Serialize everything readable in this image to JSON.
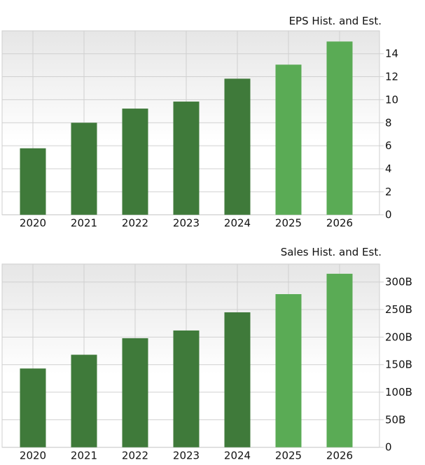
{
  "chart_data": [
    {
      "type": "bar",
      "title": "EPS Hist. and Est.",
      "categories": [
        "2020",
        "2021",
        "2022",
        "2023",
        "2024",
        "2025",
        "2026"
      ],
      "values": [
        5.78,
        8.0,
        9.23,
        9.84,
        11.83,
        13.05,
        15.06
      ],
      "estimate_flags": [
        false,
        false,
        false,
        false,
        false,
        true,
        true
      ],
      "ylim": [
        0,
        16
      ],
      "yticks": [
        0,
        2,
        4,
        6,
        8,
        10,
        12,
        14
      ],
      "ytick_labels": [
        "0",
        "2",
        "4",
        "6",
        "8",
        "10",
        "12",
        "14"
      ],
      "grid": true,
      "y_axis_side": "right",
      "colors": {
        "historical": "#3f7a3a",
        "estimate": "#5aab55"
      }
    },
    {
      "type": "bar",
      "title": "Sales Hist. and Est.",
      "categories": [
        "2020",
        "2021",
        "2022",
        "2023",
        "2024",
        "2025",
        "2026"
      ],
      "values": [
        143,
        168,
        198,
        212,
        245,
        278,
        315
      ],
      "value_unit": "B",
      "estimate_flags": [
        false,
        false,
        false,
        false,
        false,
        true,
        true
      ],
      "ylim": [
        0,
        333
      ],
      "yticks": [
        0,
        50,
        100,
        150,
        200,
        250,
        300
      ],
      "ytick_labels": [
        "0",
        "50B",
        "100B",
        "150B",
        "200B",
        "250B",
        "300B"
      ],
      "grid": true,
      "y_axis_side": "right",
      "colors": {
        "historical": "#3f7a3a",
        "estimate": "#5aab55"
      }
    }
  ]
}
